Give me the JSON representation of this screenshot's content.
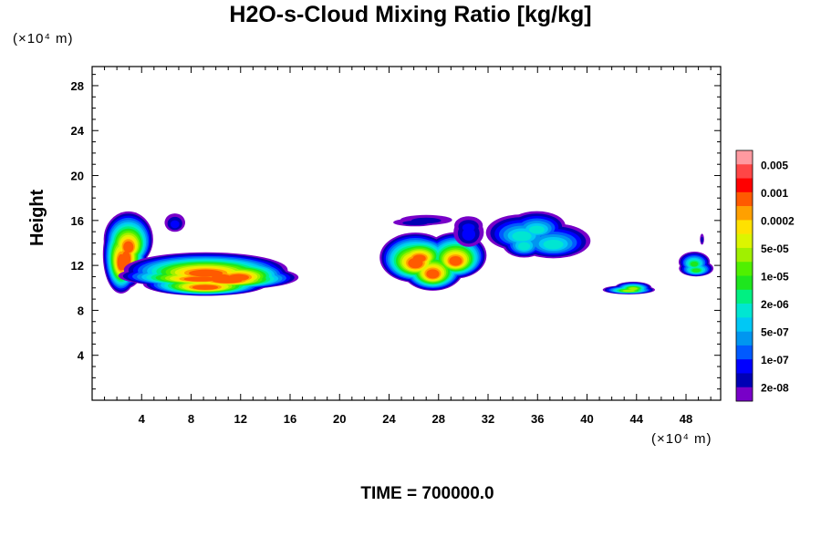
{
  "chart_data": {
    "type": "heatmap",
    "title": "H2O-s-Cloud Mixing Ratio [kg/kg]",
    "ylabel": "Height",
    "xlabel": "",
    "x_unit": "(×10⁴ m)",
    "y_unit": "(×10⁴ m)",
    "x_ticks": [
      "4",
      "8",
      "12",
      "16",
      "20",
      "24",
      "28",
      "32",
      "36",
      "40",
      "44",
      "48"
    ],
    "y_ticks": [
      "4",
      "8",
      "12",
      "16",
      "20",
      "24",
      "28"
    ],
    "xlim": [
      0,
      50.8
    ],
    "ylim": [
      0,
      29.7
    ],
    "colorbar_labels": [
      "0.005",
      "0.001",
      "0.0002",
      "5e-05",
      "1e-05",
      "2e-06",
      "5e-07",
      "1e-07",
      "2e-08"
    ],
    "colorbar_colors": [
      "#ff9aa0",
      "#ff4646",
      "#ff0000",
      "#ff5a00",
      "#ffa000",
      "#ffe100",
      "#dcf500",
      "#a0f000",
      "#50f000",
      "#1ee61e",
      "#00f082",
      "#00e6d2",
      "#00c8f5",
      "#0096f0",
      "#005aff",
      "#0000ff",
      "#0000b4",
      "#7800c8"
    ],
    "cloud_regions": [
      {
        "x": [
          0,
          5
        ],
        "y": [
          9.5,
          16.5
        ],
        "max_level": "0.001"
      },
      {
        "x": [
          5.5,
          7.5
        ],
        "y": [
          14.5,
          16.5
        ],
        "max_level": "1e-07"
      },
      {
        "x": [
          5,
          18
        ],
        "y": [
          9.5,
          12.5
        ],
        "max_level": "0.001"
      },
      {
        "x": [
          24.5,
          29
        ],
        "y": [
          15.5,
          16.5
        ],
        "max_level": "2e-08"
      },
      {
        "x": [
          24.5,
          31
        ],
        "y": [
          10,
          15
        ],
        "max_level": "0.001"
      },
      {
        "x": [
          29.5,
          32
        ],
        "y": [
          14,
          16.5
        ],
        "max_level": "1e-07"
      },
      {
        "x": [
          32.5,
          39
        ],
        "y": [
          13,
          16.5
        ],
        "max_level": "2e-06"
      },
      {
        "x": [
          41,
          46
        ],
        "y": [
          9.5,
          10.5
        ],
        "max_level": "5e-05"
      },
      {
        "x": [
          48,
          50.8
        ],
        "y": [
          11,
          13
        ],
        "max_level": "1e-05"
      },
      {
        "x": [
          49,
          49.5
        ],
        "y": [
          14,
          15
        ],
        "max_level": "2e-08"
      }
    ],
    "grid": false,
    "legend": "right"
  },
  "footer": "TIME = 700000.0"
}
